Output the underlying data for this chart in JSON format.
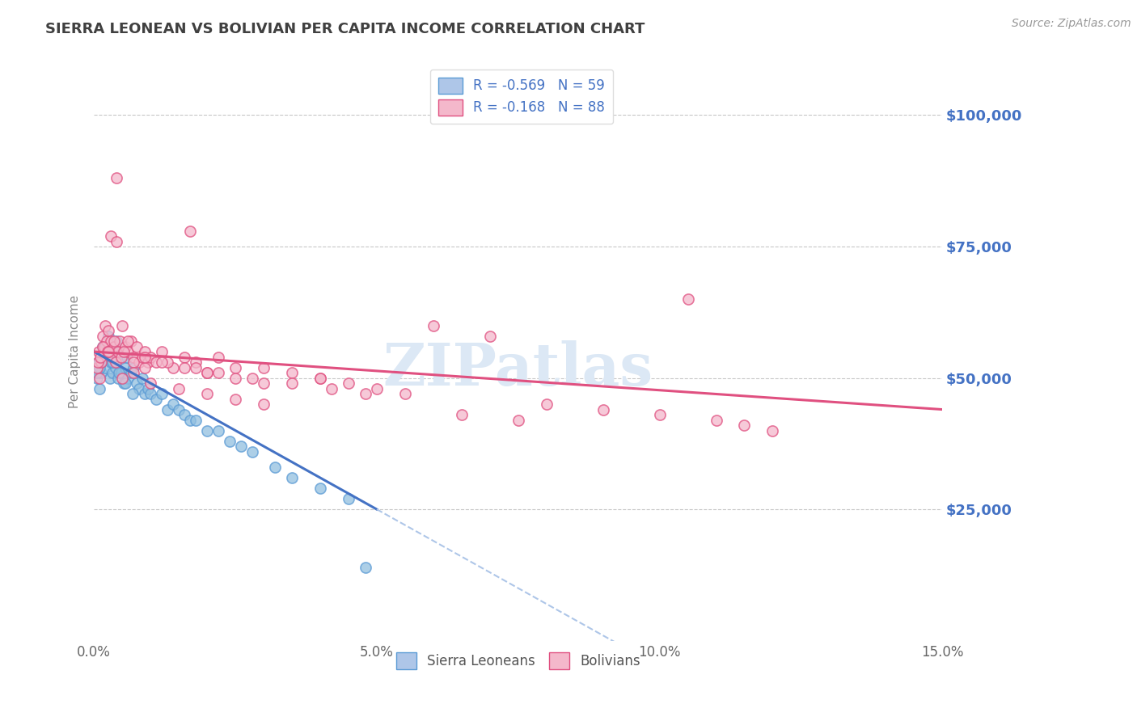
{
  "title": "SIERRA LEONEAN VS BOLIVIAN PER CAPITA INCOME CORRELATION CHART",
  "source": "Source: ZipAtlas.com",
  "ylabel": "Per Capita Income",
  "ytick_labels": [
    "$25,000",
    "$50,000",
    "$75,000",
    "$100,000"
  ],
  "ytick_values": [
    25000,
    50000,
    75000,
    100000
  ],
  "ylim": [
    0,
    110000
  ],
  "xlim": [
    0.0,
    15.0
  ],
  "legend_entries": [
    {
      "label": "R = -0.569   N = 59",
      "facecolor": "#aec6e8",
      "edgecolor": "#5b9bd5"
    },
    {
      "label": "R = -0.168   N = 88",
      "facecolor": "#f4b8cb",
      "edgecolor": "#e05080"
    }
  ],
  "legend_labels": [
    "Sierra Leoneans",
    "Bolivians"
  ],
  "blue_scatter_color": "#92bfe0",
  "blue_scatter_edge": "#5b9bd5",
  "pink_scatter_color": "#f4b8cb",
  "pink_scatter_edge": "#e05080",
  "blue_line_color": "#4472c4",
  "pink_line_color": "#e05080",
  "dashed_line_color": "#aec6e8",
  "grid_color": "#c8c8c8",
  "title_color": "#404040",
  "axis_label_color": "#4472c4",
  "ylabel_color": "#888888",
  "watermark_text": "ZIPatlas",
  "watermark_color": "#dce8f5",
  "blue_line_x0": 0.0,
  "blue_line_y0": 55000,
  "blue_line_x1": 5.0,
  "blue_line_y1": 25000,
  "blue_solid_end": 5.0,
  "blue_dash_end": 15.0,
  "pink_line_x0": 0.0,
  "pink_line_y0": 55000,
  "pink_line_x1": 15.0,
  "pink_line_y1": 44000,
  "blue_points_x": [
    0.05,
    0.08,
    0.1,
    0.12,
    0.15,
    0.18,
    0.2,
    0.22,
    0.25,
    0.28,
    0.3,
    0.32,
    0.35,
    0.38,
    0.4,
    0.42,
    0.45,
    0.48,
    0.5,
    0.52,
    0.55,
    0.58,
    0.6,
    0.65,
    0.7,
    0.75,
    0.8,
    0.85,
    0.9,
    0.95,
    1.0,
    1.1,
    1.2,
    1.3,
    1.4,
    1.5,
    1.6,
    1.7,
    1.8,
    2.0,
    2.2,
    2.4,
    2.6,
    2.8,
    3.2,
    3.5,
    4.0,
    4.5,
    4.8,
    0.06,
    0.09,
    0.13,
    0.17,
    0.21,
    0.26,
    0.33,
    0.44,
    0.56,
    0.68
  ],
  "blue_points_y": [
    50000,
    53000,
    48000,
    51000,
    56000,
    54000,
    52000,
    55000,
    58000,
    50000,
    53000,
    51000,
    55000,
    52000,
    57000,
    50000,
    54000,
    51000,
    55000,
    49000,
    52000,
    54000,
    50000,
    51000,
    52000,
    49000,
    48000,
    50000,
    47000,
    48000,
    47000,
    46000,
    47000,
    44000,
    45000,
    44000,
    43000,
    42000,
    42000,
    40000,
    40000,
    38000,
    37000,
    36000,
    33000,
    31000,
    29000,
    27000,
    14000,
    51000,
    52000,
    53000,
    54000,
    56000,
    55000,
    53000,
    51000,
    49000,
    47000
  ],
  "pink_points_x": [
    0.05,
    0.08,
    0.1,
    0.12,
    0.15,
    0.18,
    0.2,
    0.22,
    0.25,
    0.28,
    0.3,
    0.32,
    0.35,
    0.38,
    0.4,
    0.42,
    0.45,
    0.48,
    0.5,
    0.55,
    0.6,
    0.65,
    0.7,
    0.75,
    0.8,
    0.85,
    0.9,
    0.95,
    1.0,
    1.1,
    1.2,
    1.4,
    1.6,
    1.8,
    2.0,
    2.2,
    2.5,
    2.8,
    3.0,
    3.5,
    4.0,
    0.07,
    0.11,
    0.16,
    0.24,
    0.36,
    0.52,
    0.7,
    0.9,
    1.3,
    1.7,
    0.25,
    0.6,
    0.9,
    1.2,
    1.6,
    2.0,
    2.5,
    3.0,
    4.0,
    4.5,
    5.0,
    5.5,
    6.0,
    7.0,
    8.0,
    9.0,
    10.0,
    11.0,
    12.0,
    0.3,
    0.4,
    1.8,
    2.2,
    3.5,
    4.2,
    4.8,
    6.5,
    7.5,
    10.5,
    11.5,
    0.5,
    0.7,
    1.0,
    1.5,
    2.0,
    2.5,
    3.0
  ],
  "pink_points_y": [
    52000,
    55000,
    50000,
    53000,
    58000,
    56000,
    60000,
    57000,
    59000,
    55000,
    57000,
    54000,
    56000,
    53000,
    88000,
    55000,
    57000,
    54000,
    60000,
    56000,
    55000,
    57000,
    54000,
    56000,
    53000,
    54000,
    55000,
    53000,
    54000,
    53000,
    55000,
    52000,
    54000,
    53000,
    51000,
    54000,
    52000,
    50000,
    52000,
    51000,
    50000,
    53000,
    54000,
    56000,
    55000,
    57000,
    55000,
    53000,
    52000,
    53000,
    78000,
    55000,
    57000,
    54000,
    53000,
    52000,
    51000,
    50000,
    49000,
    50000,
    49000,
    48000,
    47000,
    60000,
    58000,
    45000,
    44000,
    43000,
    42000,
    40000,
    77000,
    76000,
    52000,
    51000,
    49000,
    48000,
    47000,
    43000,
    42000,
    65000,
    41000,
    50000,
    51000,
    49000,
    48000,
    47000,
    46000,
    45000
  ]
}
